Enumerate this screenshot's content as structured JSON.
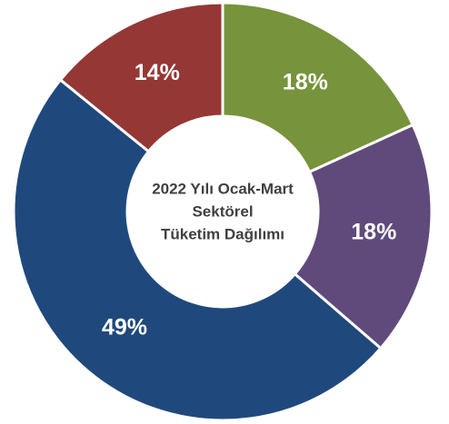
{
  "chart_data": {
    "type": "donut",
    "title": [
      "2022 Yılı Ocak-Mart",
      "Sektörel",
      "Tüketim Dağılımı"
    ],
    "categories": [
      null,
      null,
      null,
      null
    ],
    "values": [
      18,
      18,
      49,
      14
    ],
    "value_labels": [
      "18%",
      "18%",
      "49%",
      "14%"
    ],
    "colors": [
      "#77933c",
      "#604a7b",
      "#1f497d",
      "#953735"
    ]
  }
}
